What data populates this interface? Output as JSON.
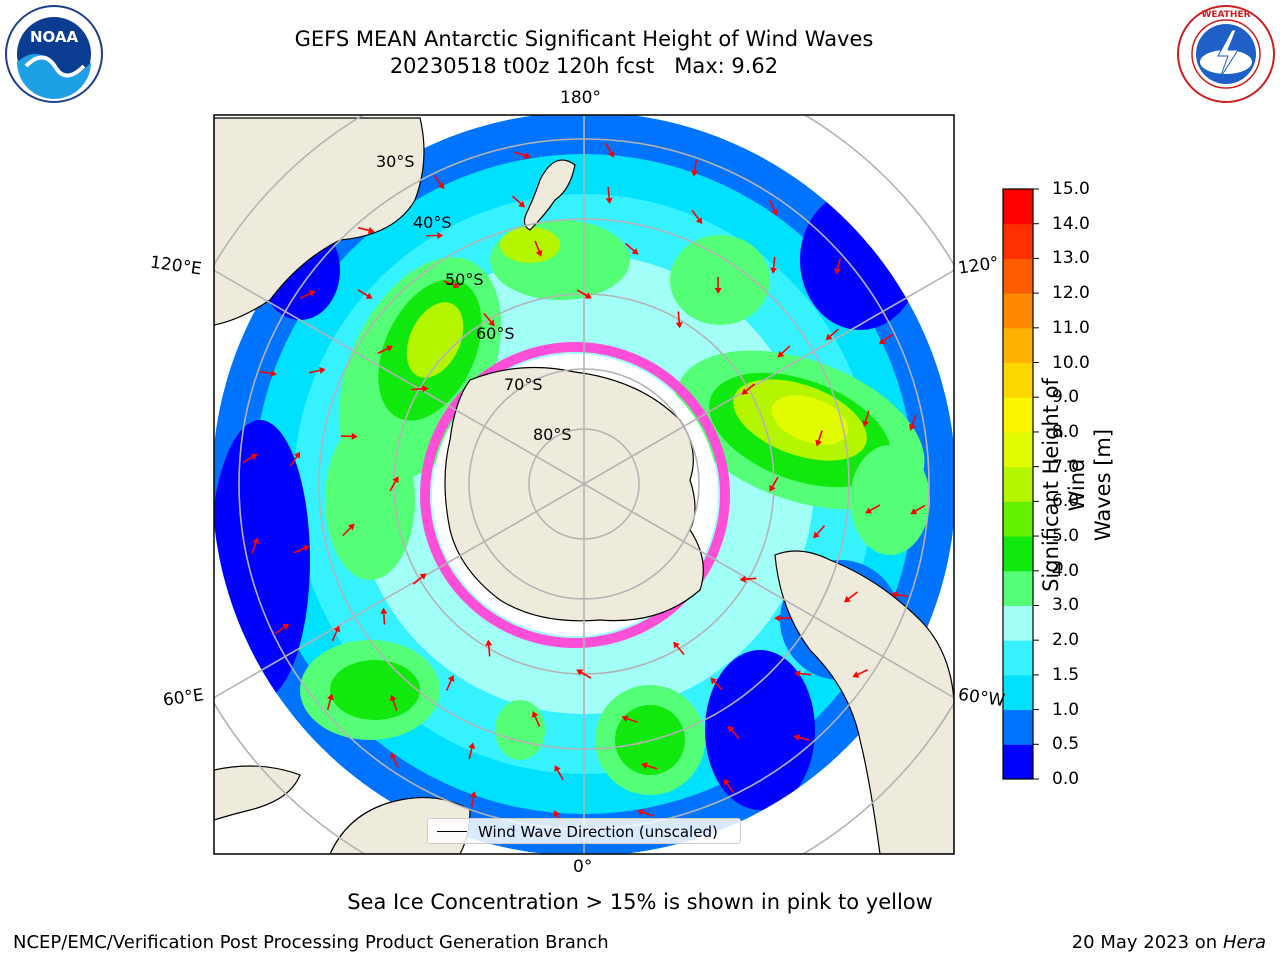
{
  "header": {
    "title_line1": "GEFS MEAN Antarctic Significant Height of Wind Waves",
    "title_line2": "20230518 t00z 120h fcst   Max: 9.62"
  },
  "logos": {
    "left": {
      "icon": "noaa-logo",
      "text": "NOAA"
    },
    "right": {
      "icon": "nws-logo",
      "text": "NATIONAL WEATHER SERVICE"
    }
  },
  "map": {
    "projection": "south-polar-stereographic",
    "longitude_labels": {
      "top": "180°",
      "upper_left": "120°E",
      "upper_right": "120°",
      "lower_left": "60°E",
      "lower_right": "60°W",
      "bottom": "0°"
    },
    "latitude_labels": [
      "30°S",
      "40°S",
      "50°S",
      "60°S",
      "70°S",
      "80°S"
    ],
    "legend": {
      "label": "Wind Wave Direction (unscaled)"
    },
    "arrow_color": "#ff0000",
    "land_color": "#efebdc"
  },
  "colorbar": {
    "label_line1": "Significant Height of Wind",
    "label_line2": "Waves [m]",
    "ticks": [
      "0.0",
      "0.5",
      "1.0",
      "1.5",
      "2.0",
      "3.0",
      "4.0",
      "5.0",
      "6.0",
      "7.0",
      "8.0",
      "9.0",
      "10.0",
      "11.0",
      "12.0",
      "13.0",
      "14.0",
      "15.0"
    ],
    "colors": [
      "#0000ff",
      "#0073ff",
      "#00e1ff",
      "#36f2ff",
      "#a1fff7",
      "#54ff77",
      "#11e80e",
      "#63f000",
      "#b4f500",
      "#e1fb00",
      "#fbf500",
      "#ffd700",
      "#ffb300",
      "#ff8800",
      "#ff5c00",
      "#ff3000",
      "#ff0000"
    ]
  },
  "notes": {
    "sea_ice": "Sea Ice Concentration > 15% is shown in pink to yellow"
  },
  "footer": {
    "left": "NCEP/EMC/Verification Post Processing Product Generation Branch",
    "right_date": "20 May 2023 on",
    "right_host": "Hera"
  }
}
